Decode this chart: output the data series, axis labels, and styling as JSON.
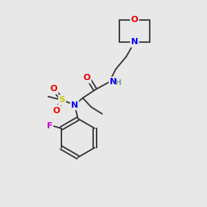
{
  "background_color": "#e8e8e8",
  "bond_color": "#3a3a3a",
  "bond_width": 1.5,
  "atom_colors": {
    "N": "#0000ee",
    "O": "#ee0000",
    "F": "#cc00cc",
    "S": "#cccc00",
    "C": "#3a3a3a",
    "H": "#7a9a9a"
  },
  "font_size": 9,
  "font_size_small": 8
}
